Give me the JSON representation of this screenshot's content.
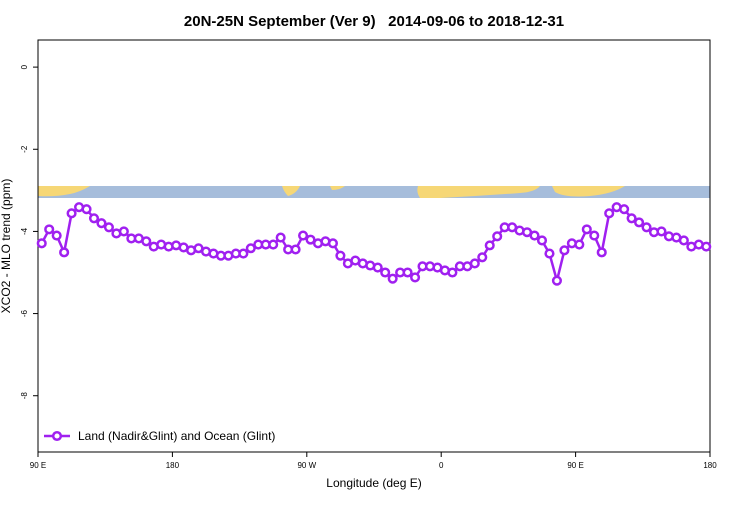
{
  "chart_data": {
    "type": "line",
    "title": "20N-25N September (Ver 9)   2014-09-06 to 2018-12-31",
    "x_label": "Longitude (deg E)",
    "y_label": "XCO2 - MLO trend (ppm)",
    "xlim": [
      90,
      540
    ],
    "ylim": [
      -9.37,
      0.66
    ],
    "xticks": [
      {
        "value": 90,
        "label": "90 E"
      },
      {
        "value": 180,
        "label": "180"
      },
      {
        "value": 270,
        "label": "90 W"
      },
      {
        "value": 360,
        "label": "0"
      },
      {
        "value": 450,
        "label": "90 E"
      },
      {
        "value": 540,
        "label": "180"
      }
    ],
    "yticks": [
      0,
      -2,
      -4,
      -6,
      -8
    ],
    "legend": "bottom-left",
    "x": [
      92.5,
      97.5,
      102.5,
      107.5,
      112.5,
      117.5,
      122.5,
      127.5,
      132.5,
      137.5,
      142.5,
      147.5,
      152.5,
      157.5,
      162.5,
      167.5,
      172.5,
      177.5,
      182.5,
      187.5,
      192.5,
      197.5,
      202.5,
      207.5,
      212.5,
      217.5,
      222.5,
      227.5,
      232.5,
      237.5,
      242.5,
      247.5,
      252.5,
      257.5,
      262.5,
      267.5,
      272.5,
      277.5,
      282.5,
      287.5,
      292.5,
      297.5,
      302.5,
      307.5,
      312.5,
      317.5,
      322.5,
      327.5,
      332.5,
      337.5,
      342.5,
      347.5,
      352.5,
      357.5,
      362.5,
      367.5,
      372.5,
      377.5,
      382.5,
      387.5,
      392.5,
      397.5,
      402.5,
      407.5,
      412.5,
      417.5,
      422.5,
      427.5,
      432.5,
      437.5,
      442.5,
      447.5,
      452.5,
      457.5,
      462.5,
      467.5,
      472.5,
      477.5,
      482.5,
      487.5,
      492.5,
      497.5,
      502.5,
      507.5,
      512.5,
      517.5,
      522.5,
      527.5,
      532.5,
      537.5
    ],
    "series": [
      {
        "name": "Land (Nadir&Glint) and Ocean (Glint)",
        "color": "#a020f0",
        "values": [
          -4.29,
          -3.95,
          -4.1,
          -4.51,
          -3.56,
          -3.41,
          -3.46,
          -3.68,
          -3.8,
          -3.9,
          -4.05,
          -4.0,
          -4.17,
          -4.17,
          -4.24,
          -4.37,
          -4.32,
          -4.37,
          -4.34,
          -4.39,
          -4.46,
          -4.41,
          -4.49,
          -4.54,
          -4.59,
          -4.59,
          -4.54,
          -4.54,
          -4.41,
          -4.32,
          -4.32,
          -4.32,
          -4.15,
          -4.44,
          -4.44,
          -4.1,
          -4.2,
          -4.29,
          -4.24,
          -4.29,
          -4.59,
          -4.78,
          -4.71,
          -4.78,
          -4.83,
          -4.88,
          -5.0,
          -5.15,
          -5.0,
          -5.0,
          -5.12,
          -4.85,
          -4.85,
          -4.88,
          -4.95,
          -5.0,
          -4.85,
          -4.85,
          -4.78,
          -4.63,
          -4.34,
          -4.12,
          -3.9,
          -3.9,
          -3.98,
          -4.02,
          -4.1,
          -4.22,
          -4.54,
          -5.2,
          -4.46,
          -4.29,
          -4.32,
          -3.95,
          -4.1,
          -4.51,
          -3.56,
          -3.41,
          -3.46,
          -3.68,
          -3.78,
          -3.9,
          -4.02,
          -4.0,
          -4.12,
          -4.15,
          -4.22,
          -4.37,
          -4.32,
          -4.37
        ]
      }
    ]
  }
}
